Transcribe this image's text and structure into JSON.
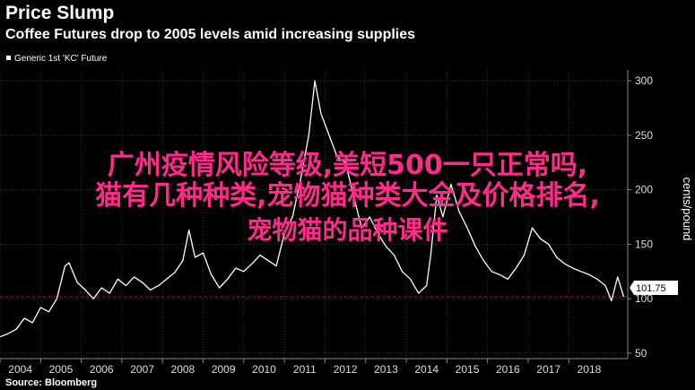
{
  "header": {
    "title": "Price Slump",
    "subtitle": "Coffee Futures drop to 2005 levels amid increasing supplies"
  },
  "footer": {
    "source": "Source: Bloomberg"
  },
  "overlay_text": [
    "广州疫情风险等级,美短500一只正常吗,",
    "猫有几种种类,宠物猫种类大全及价格排名,",
    "宠物猫的品种课件"
  ],
  "colors": {
    "background": "#000000",
    "line": "#ffffff",
    "reference": "#b0103a",
    "overlay": "#ff2a8a"
  },
  "chart_data": {
    "type": "line",
    "title": "Price Slump",
    "subtitle": "Coffee Futures drop to 2005 levels amid increasing supplies",
    "legend": "Generic 1st 'KC' Future",
    "legend_position": "top-left",
    "ylabel": "cents/pound",
    "yaxis_side": "right",
    "ylim": [
      45,
      310
    ],
    "yticks": [
      50,
      100,
      150,
      200,
      250,
      300
    ],
    "xlim": [
      2003.5,
      2018.95
    ],
    "xticks": [
      2004,
      2005,
      2006,
      2007,
      2008,
      2009,
      2010,
      2011,
      2012,
      2013,
      2014,
      2015,
      2016,
      2017,
      2018
    ],
    "last_value_label": "101.75",
    "reference_level": 101.75,
    "grid": true,
    "series": [
      {
        "name": "Generic 1st 'KC' Future",
        "x": [
          2003.5,
          2003.7,
          2003.9,
          2004.1,
          2004.3,
          2004.5,
          2004.7,
          2004.9,
          2005.1,
          2005.2,
          2005.4,
          2005.6,
          2005.8,
          2006.0,
          2006.2,
          2006.4,
          2006.6,
          2006.8,
          2007.0,
          2007.2,
          2007.4,
          2007.6,
          2007.8,
          2008.0,
          2008.15,
          2008.3,
          2008.5,
          2008.7,
          2008.9,
          2009.1,
          2009.3,
          2009.5,
          2009.7,
          2009.9,
          2010.1,
          2010.3,
          2010.5,
          2010.7,
          2010.9,
          2011.1,
          2011.25,
          2011.4,
          2011.6,
          2011.8,
          2012.0,
          2012.2,
          2012.4,
          2012.6,
          2012.8,
          2013.0,
          2013.2,
          2013.4,
          2013.6,
          2013.8,
          2014.0,
          2014.1,
          2014.25,
          2014.4,
          2014.6,
          2014.8,
          2015.0,
          2015.2,
          2015.4,
          2015.6,
          2015.8,
          2016.0,
          2016.2,
          2016.4,
          2016.6,
          2016.8,
          2017.0,
          2017.2,
          2017.4,
          2017.6,
          2017.8,
          2018.0,
          2018.2,
          2018.4,
          2018.55,
          2018.7,
          2018.85
        ],
        "values": [
          65,
          68,
          72,
          82,
          78,
          92,
          88,
          100,
          130,
          133,
          115,
          108,
          100,
          110,
          105,
          118,
          112,
          120,
          115,
          108,
          112,
          118,
          124,
          135,
          163,
          138,
          142,
          122,
          110,
          118,
          128,
          125,
          132,
          140,
          135,
          130,
          160,
          175,
          210,
          250,
          300,
          270,
          250,
          230,
          225,
          195,
          165,
          175,
          160,
          148,
          140,
          125,
          118,
          105,
          112,
          140,
          195,
          175,
          205,
          180,
          165,
          148,
          135,
          125,
          122,
          118,
          128,
          140,
          165,
          155,
          150,
          138,
          132,
          128,
          125,
          122,
          118,
          112,
          98,
          120,
          101.75
        ]
      }
    ]
  }
}
